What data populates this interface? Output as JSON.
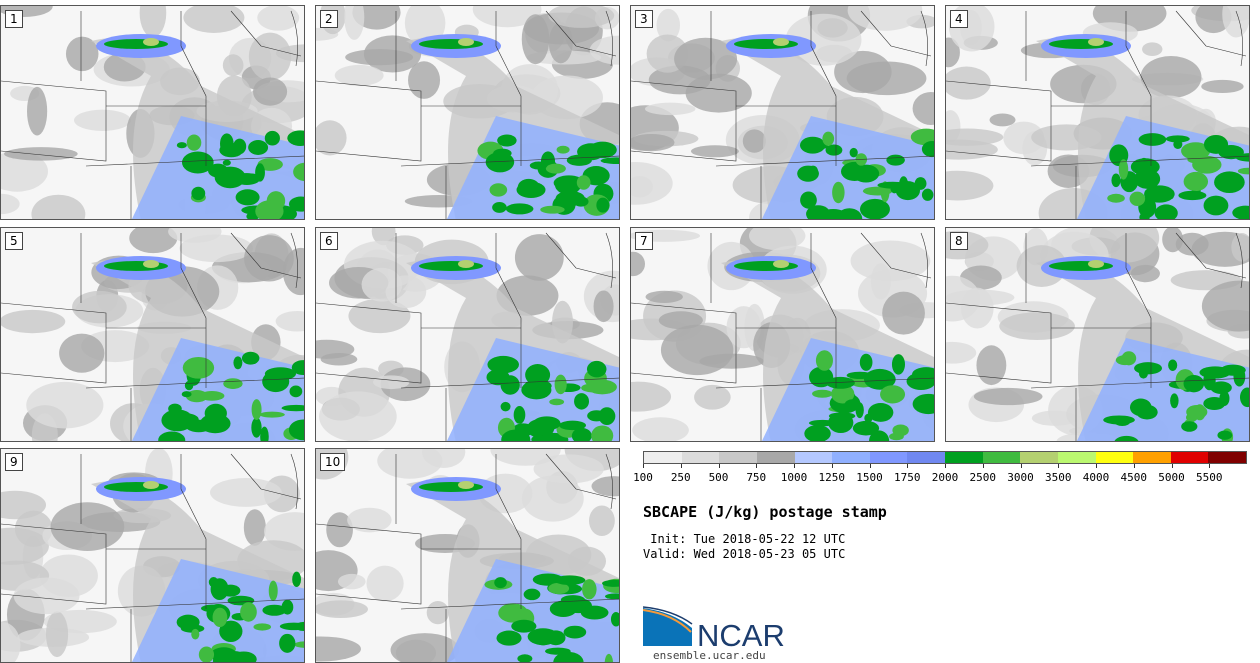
{
  "chart_data": {
    "type": "heatmap",
    "title": "SBCAPE (J/kg) postage stamp",
    "init": " Init: Tue 2018-05-22 12 UTC",
    "valid": "Valid: Wed 2018-05-23 05 UTC",
    "panels": [
      "1",
      "2",
      "3",
      "4",
      "5",
      "6",
      "7",
      "8",
      "9",
      "10"
    ],
    "colorbar": {
      "ticks": [
        "100",
        "250",
        "500",
        "750",
        "1000",
        "1250",
        "1500",
        "1750",
        "2000",
        "2500",
        "3000",
        "3500",
        "4000",
        "4500",
        "5000",
        "5500"
      ],
      "colors": [
        "#eeeeee",
        "#dcdcdc",
        "#c8c8c8",
        "#a8a8a8",
        "#b4c8ff",
        "#90b0ff",
        "#8098ff",
        "#7088f0",
        "#00a020",
        "#40bb40",
        "#b4d070",
        "#bbf870",
        "#ffff10",
        "#ffa000",
        "#e00000",
        "#800000"
      ]
    }
  },
  "footer": {
    "logo_text": "NCAR",
    "site": "ensemble.ucar.edu"
  }
}
